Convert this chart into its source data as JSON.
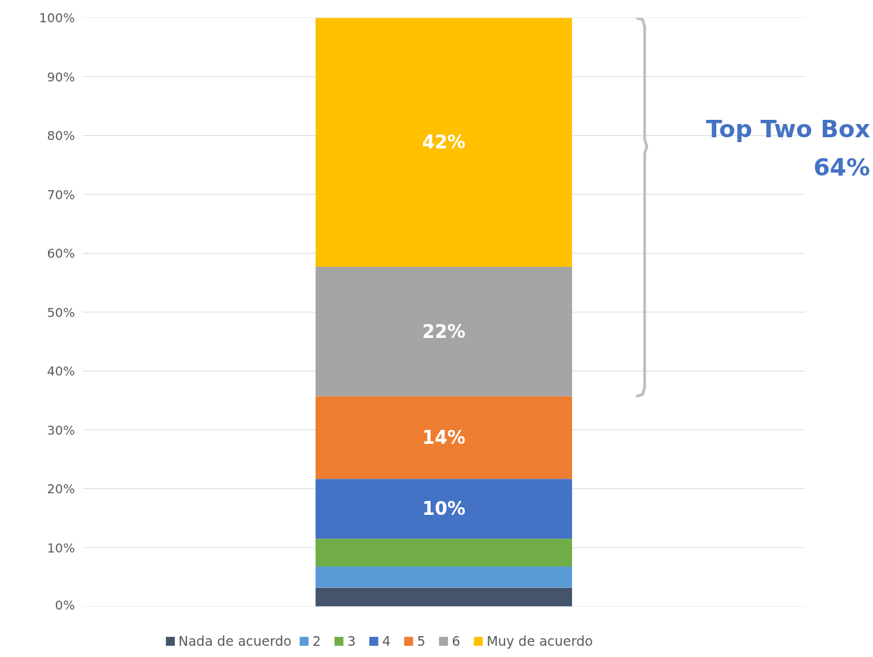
{
  "chart_data": {
    "type": "bar",
    "stacked": true,
    "categories": [
      null
    ],
    "series": [
      {
        "name": "Nada de acuerdo",
        "color": "#44546a",
        "values": [
          3.2
        ]
      },
      {
        "name": "2",
        "color": "#5b9bd5",
        "values": [
          3.6
        ]
      },
      {
        "name": "3",
        "color": "#70ad47",
        "values": [
          4.7
        ]
      },
      {
        "name": "4",
        "color": "#4472c4",
        "values": [
          10.2
        ],
        "value_labels": [
          "10%"
        ]
      },
      {
        "name": "5",
        "color": "#ed7d31",
        "values": [
          14.0
        ],
        "value_labels": [
          "14%"
        ]
      },
      {
        "name": "6",
        "color": "#a5a5a5",
        "values": [
          22.0
        ],
        "value_labels": [
          "22%"
        ]
      },
      {
        "name": "Muy de acuerdo",
        "color": "#ffc000",
        "values": [
          42.3
        ],
        "value_labels": [
          "42%"
        ]
      }
    ],
    "ylim": [
      0,
      100
    ],
    "yticks": [
      {
        "value": 0,
        "label": "0%"
      },
      {
        "value": 10,
        "label": "10%"
      },
      {
        "value": 20,
        "label": "20%"
      },
      {
        "value": 30,
        "label": "30%"
      },
      {
        "value": 40,
        "label": "40%"
      },
      {
        "value": 50,
        "label": "50%"
      },
      {
        "value": 60,
        "label": "60%"
      },
      {
        "value": 70,
        "label": "70%"
      },
      {
        "value": 80,
        "label": "80%"
      },
      {
        "value": 90,
        "label": "90%"
      },
      {
        "value": 100,
        "label": "100%"
      }
    ],
    "grid": "y",
    "legend": "bottom",
    "annotations": [
      "Top Two Box",
      "64%"
    ]
  }
}
